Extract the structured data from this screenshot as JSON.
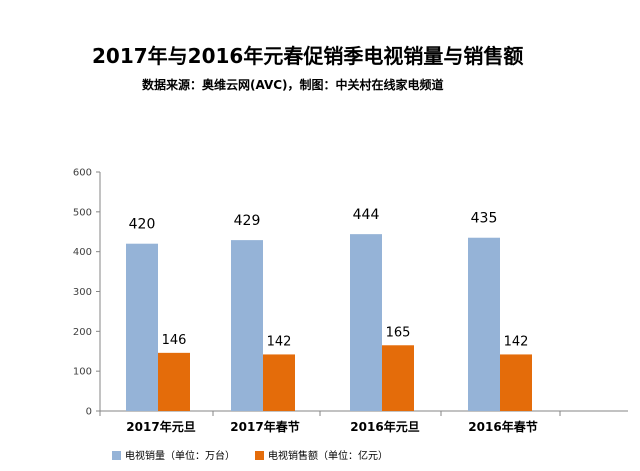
{
  "chart_data": {
    "type": "bar",
    "title": "2017年与2016年元春促销季电视销量与销售额",
    "subtitle": "数据来源：奥维云网(AVC)，制图：中关村在线家电频道",
    "categories": [
      "2017年元旦",
      "2017年春节",
      "2016年元旦",
      "2016年春节"
    ],
    "series": [
      {
        "name": "电视销量（单位：万台）",
        "values": [
          420,
          429,
          444,
          435
        ],
        "color": "#95b3d7"
      },
      {
        "name": "电视销售额（单位：亿元）",
        "values": [
          146,
          142,
          165,
          142
        ],
        "color": "#e46c0a"
      }
    ],
    "yticks": [
      "0",
      "100",
      "200",
      "300",
      "400",
      "500",
      "600"
    ],
    "ylim": [
      0,
      600
    ],
    "xlabel": "",
    "ylabel": "",
    "grid": false,
    "legend_position": "bottom-left"
  }
}
